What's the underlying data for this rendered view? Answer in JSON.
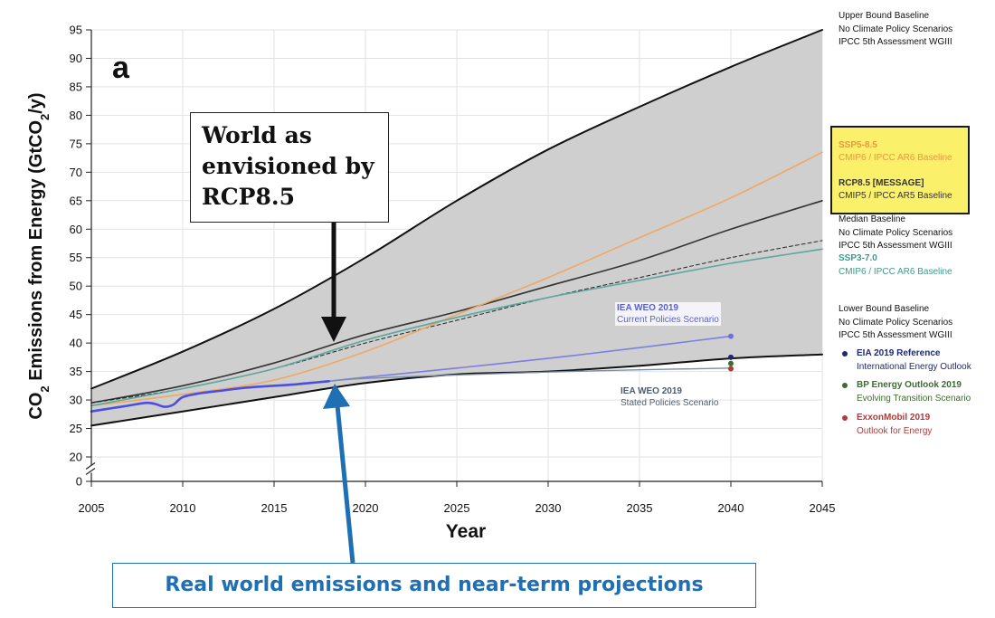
{
  "panel_letter": "a",
  "chart_data": {
    "type": "line",
    "xlabel": "Year",
    "ylabel": "CO2 Emissions from Energy (GtCO2/y)",
    "xlim": [
      2005,
      2045
    ],
    "ylim": [
      0,
      95
    ],
    "x_ticks": [
      2005,
      2010,
      2015,
      2020,
      2025,
      2030,
      2035,
      2040,
      2045
    ],
    "y_ticks": [
      0,
      20,
      25,
      30,
      35,
      40,
      45,
      50,
      55,
      60,
      65,
      70,
      75,
      80,
      85,
      90,
      95
    ],
    "y_axis_break": true,
    "grid": true,
    "shaded_range": {
      "upper": {
        "x": [
          2005,
          2010,
          2015,
          2020,
          2025,
          2030,
          2035,
          2040,
          2045
        ],
        "y": [
          32,
          38.5,
          46,
          55,
          65,
          74,
          81.5,
          88.5,
          95
        ]
      },
      "lower": {
        "x": [
          2005,
          2010,
          2015,
          2020,
          2025,
          2030,
          2035,
          2040,
          2045
        ],
        "y": [
          25.5,
          28,
          30.5,
          33,
          34.5,
          35,
          36,
          37.3,
          38
        ]
      },
      "color": "#cfcfcf"
    },
    "series": [
      {
        "name": "Upper Bound Baseline",
        "color": "#111111",
        "width": 2,
        "x": [
          2005,
          2010,
          2015,
          2020,
          2025,
          2030,
          2035,
          2040,
          2045
        ],
        "y": [
          32,
          38.5,
          46,
          55,
          65,
          74,
          81.5,
          88.5,
          95
        ]
      },
      {
        "name": "Lower Bound Baseline",
        "color": "#111111",
        "width": 2,
        "x": [
          2005,
          2010,
          2015,
          2020,
          2025,
          2030,
          2035,
          2040,
          2045
        ],
        "y": [
          25.5,
          28,
          30.5,
          33,
          34.5,
          35,
          36,
          37.3,
          38
        ]
      },
      {
        "name": "Median Baseline",
        "color": "#333333",
        "width": 1.6,
        "x": [
          2005,
          2010,
          2015,
          2020,
          2025,
          2030,
          2035,
          2040,
          2045
        ],
        "y": [
          29.5,
          32.5,
          36.5,
          41.5,
          45.5,
          50,
          54.5,
          60,
          65
        ]
      },
      {
        "name": "RCP8.5 [MESSAGE]",
        "color": "#222222",
        "width": 1,
        "dash": "4,3",
        "x": [
          2005,
          2010,
          2015,
          2020,
          2025,
          2030,
          2035,
          2040,
          2045
        ],
        "y": [
          29.5,
          32,
          35.5,
          40,
          44,
          48,
          51.5,
          55,
          58
        ]
      },
      {
        "name": "SSP5-8.5",
        "color": "#f0a862",
        "width": 1.6,
        "x": [
          2005,
          2010,
          2015,
          2020,
          2025,
          2030,
          2035,
          2040,
          2045
        ],
        "y": [
          29,
          31,
          33.5,
          38.5,
          45,
          51.5,
          58.5,
          65.5,
          73.5
        ]
      },
      {
        "name": "SSP3-7.0",
        "color": "#5aa89e",
        "width": 1.6,
        "x": [
          2005,
          2010,
          2015,
          2020,
          2025,
          2030,
          2035,
          2040,
          2045
        ],
        "y": [
          29,
          32,
          35.5,
          40.5,
          44.5,
          48,
          51,
          54,
          56.5
        ]
      },
      {
        "name": "IEA WEO 2019 Current Policies Scenario",
        "color": "#7b7fe0",
        "width": 1.6,
        "x": [
          2018,
          2020,
          2025,
          2030,
          2035,
          2040
        ],
        "y": [
          33.3,
          34,
          35.6,
          37.3,
          39.2,
          41.2
        ]
      },
      {
        "name": "IEA WEO 2019 Stated Policies Scenario",
        "color": "#7a8fa6",
        "width": 1.4,
        "x": [
          2018,
          2020,
          2025,
          2030,
          2035,
          2040
        ],
        "y": [
          33.3,
          33.8,
          34.4,
          34.9,
          35.3,
          35.6
        ]
      },
      {
        "name": "Historical",
        "color": "#4a4fe0",
        "width": 2.6,
        "x": [
          2005,
          2006,
          2007,
          2008,
          2008.5,
          2009,
          2009.5,
          2010,
          2011,
          2012,
          2013,
          2014,
          2015,
          2016,
          2017,
          2018
        ],
        "y": [
          28,
          28.5,
          29,
          29.5,
          29.3,
          28.8,
          29.2,
          30.5,
          31.2,
          31.6,
          32,
          32.3,
          32.5,
          32.7,
          33,
          33.3
        ]
      }
    ],
    "points": [
      {
        "name": "IEA WEO 2019 Current Policies 2040",
        "x": 2040,
        "y": 41.2,
        "color": "#6d72e0"
      },
      {
        "name": "EIA 2019 Reference",
        "x": 2040,
        "y": 37.5,
        "color": "#1e2a6e"
      },
      {
        "name": "BP Energy Outlook 2019",
        "x": 2040,
        "y": 36.4,
        "color": "#3d6b30"
      },
      {
        "name": "ExxonMobil 2019",
        "x": 2040,
        "y": 35.5,
        "color": "#b23a3a"
      }
    ]
  },
  "labels": {
    "iea_current_line1": "IEA WEO 2019",
    "iea_current_line2": "Current Policies Scenario",
    "iea_stated_line1": "IEA WEO 2019",
    "iea_stated_line2": "Stated Policies Scenario"
  },
  "legend": {
    "upper": [
      "Upper Bound Baseline",
      "No Climate Policy Scenarios",
      "IPCC 5th Assessment WGIII"
    ],
    "ssp585_name": "SSP5-8.5",
    "ssp585_sub": "CMIP6 / IPCC AR6 Baseline",
    "rcp85_name": "RCP8.5 [MESSAGE]",
    "rcp85_sub": "CMIP5 / IPCC AR5 Baseline",
    "median": [
      "Median Baseline",
      "No Climate Policy Scenarios",
      "IPCC 5th Assessment WGIII"
    ],
    "ssp370_name": "SSP3-7.0",
    "ssp370_sub": "CMIP6 / IPCC AR6 Baseline",
    "lower": [
      "Lower Bound Baseline",
      "No Climate Policy Scenarios",
      "IPCC 5th Assessment WGIII"
    ],
    "eia_name": "EIA 2019 Reference",
    "eia_sub": "International Energy Outlook",
    "bp_name": "BP Energy Outlook 2019",
    "bp_sub": "Evolving Transition Scenario",
    "exxon_name": "ExxonMobil 2019",
    "exxon_sub": "Outlook for Energy",
    "colors": {
      "ssp585": "#f0a862",
      "rcp85_text": "#333333",
      "ssp370": "#3c9a8c",
      "eia": "#1e2a6e",
      "bp": "#3d6b30",
      "exxon": "#b23a3a"
    }
  },
  "callouts": {
    "rcp_text": [
      "World as",
      "envisioned by",
      "RCP8.5"
    ],
    "real_world_text": "Real world emissions and near-term projections"
  }
}
